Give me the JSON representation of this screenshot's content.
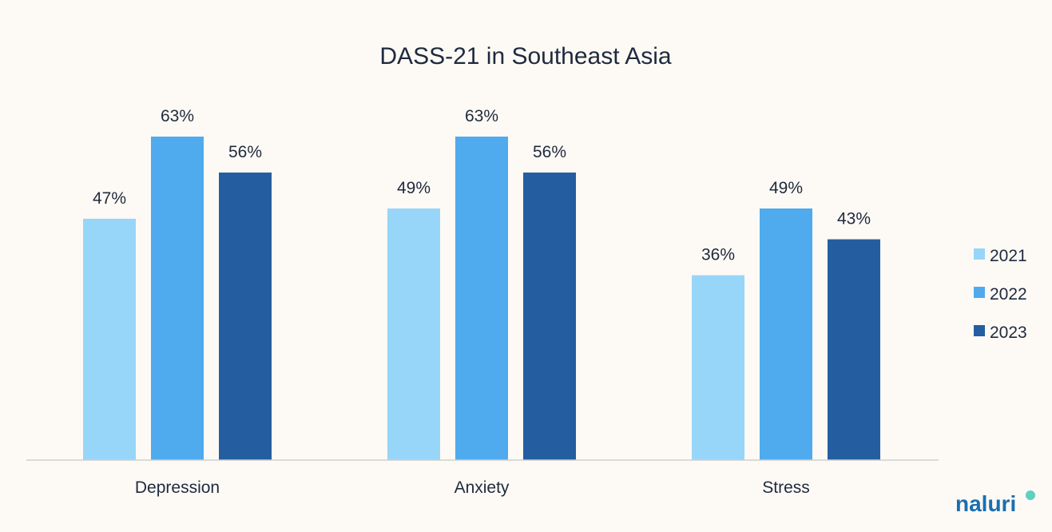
{
  "chart_data": {
    "type": "bar",
    "title": "DASS-21 in Southeast Asia",
    "categories": [
      "Depression",
      "Anxiety",
      "Stress"
    ],
    "series": [
      {
        "name": "2021",
        "color": "#97d6f8",
        "values": [
          47,
          49,
          36
        ]
      },
      {
        "name": "2022",
        "color": "#4faaee",
        "values": [
          63,
          63,
          49
        ]
      },
      {
        "name": "2023",
        "color": "#245ea0",
        "values": [
          56,
          56,
          43
        ]
      }
    ],
    "value_suffix": "%",
    "xlabel": "",
    "ylabel": "",
    "ylim": [
      0,
      63
    ],
    "grid": false,
    "y_axis_visible": false,
    "legend_position": "right"
  },
  "logo": {
    "text": "naluri",
    "color": "#1a6fb0",
    "accent": "#5fd0c0"
  }
}
